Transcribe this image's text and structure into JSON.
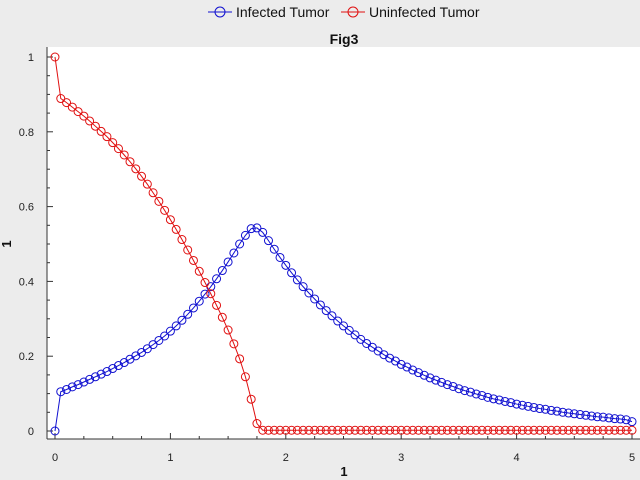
{
  "chart_data": {
    "type": "line",
    "title": "Fig3",
    "xlabel": "1",
    "ylabel": "1",
    "xlim": [
      0,
      5
    ],
    "ylim": [
      0,
      1
    ],
    "x_ticks": [
      "0",
      "1",
      "2",
      "3",
      "4",
      "5"
    ],
    "y_ticks": [
      "0",
      "0.2",
      "0.4",
      "0.6",
      "0.8",
      "1"
    ],
    "grid": false,
    "legend_position": "top",
    "x": [
      0,
      0.05,
      0.1,
      0.15,
      0.2,
      0.25,
      0.3,
      0.35,
      0.4,
      0.45,
      0.5,
      0.55,
      0.6,
      0.65,
      0.7,
      0.75,
      0.8,
      0.85,
      0.9,
      0.95,
      1.0,
      1.05,
      1.1,
      1.15,
      1.2,
      1.25,
      1.3,
      1.35,
      1.4,
      1.45,
      1.5,
      1.55,
      1.6,
      1.65,
      1.7,
      1.75,
      1.8,
      1.85,
      1.9,
      1.95,
      2.0,
      2.05,
      2.1,
      2.15,
      2.2,
      2.25,
      2.3,
      2.35,
      2.4,
      2.45,
      2.5,
      2.55,
      2.6,
      2.65,
      2.7,
      2.75,
      2.8,
      2.85,
      2.9,
      2.95,
      3.0,
      3.05,
      3.1,
      3.15,
      3.2,
      3.25,
      3.3,
      3.35,
      3.4,
      3.45,
      3.5,
      3.55,
      3.6,
      3.65,
      3.7,
      3.75,
      3.8,
      3.85,
      3.9,
      3.95,
      4.0,
      4.05,
      4.1,
      4.15,
      4.2,
      4.25,
      4.3,
      4.35,
      4.4,
      4.45,
      4.5,
      4.55,
      4.6,
      4.65,
      4.7,
      4.75,
      4.8,
      4.85,
      4.9,
      4.95,
      5.0
    ],
    "series": [
      {
        "name": "Infected Tumor",
        "color": "#1010d0",
        "marker": "open-circle",
        "values": [
          0,
          0.105,
          0.111,
          0.118,
          0.124,
          0.131,
          0.138,
          0.145,
          0.152,
          0.159,
          0.167,
          0.175,
          0.183,
          0.192,
          0.201,
          0.21,
          0.22,
          0.231,
          0.242,
          0.254,
          0.267,
          0.281,
          0.296,
          0.312,
          0.329,
          0.347,
          0.366,
          0.386,
          0.407,
          0.429,
          0.452,
          0.476,
          0.5,
          0.523,
          0.541,
          0.543,
          0.531,
          0.509,
          0.486,
          0.464,
          0.443,
          0.423,
          0.404,
          0.386,
          0.369,
          0.353,
          0.337,
          0.322,
          0.308,
          0.294,
          0.281,
          0.269,
          0.257,
          0.245,
          0.234,
          0.224,
          0.214,
          0.204,
          0.195,
          0.187,
          0.178,
          0.171,
          0.163,
          0.156,
          0.149,
          0.142,
          0.136,
          0.13,
          0.124,
          0.119,
          0.113,
          0.108,
          0.104,
          0.099,
          0.095,
          0.09,
          0.086,
          0.083,
          0.079,
          0.076,
          0.072,
          0.069,
          0.066,
          0.063,
          0.06,
          0.058,
          0.055,
          0.053,
          0.05,
          0.048,
          0.046,
          0.044,
          0.042,
          0.04,
          0.038,
          0.037,
          0.035,
          0.033,
          0.032,
          0.03,
          0.025
        ]
      },
      {
        "name": "Uninfected Tumor",
        "color": "#e01010",
        "marker": "open-circle",
        "values": [
          1.0,
          0.889,
          0.878,
          0.866,
          0.854,
          0.842,
          0.829,
          0.815,
          0.801,
          0.787,
          0.771,
          0.755,
          0.738,
          0.72,
          0.701,
          0.681,
          0.66,
          0.637,
          0.614,
          0.59,
          0.565,
          0.539,
          0.512,
          0.484,
          0.456,
          0.427,
          0.397,
          0.367,
          0.336,
          0.304,
          0.27,
          0.233,
          0.193,
          0.145,
          0.085,
          0.02,
          0.002,
          0.002,
          0.002,
          0.002,
          0.002,
          0.002,
          0.002,
          0.002,
          0.002,
          0.002,
          0.002,
          0.002,
          0.002,
          0.002,
          0.002,
          0.002,
          0.002,
          0.002,
          0.002,
          0.002,
          0.002,
          0.002,
          0.002,
          0.002,
          0.002,
          0.002,
          0.002,
          0.002,
          0.002,
          0.002,
          0.002,
          0.002,
          0.002,
          0.002,
          0.002,
          0.002,
          0.002,
          0.002,
          0.002,
          0.002,
          0.002,
          0.002,
          0.002,
          0.002,
          0.002,
          0.002,
          0.002,
          0.002,
          0.002,
          0.002,
          0.002,
          0.002,
          0.002,
          0.002,
          0.002,
          0.002,
          0.002,
          0.002,
          0.002,
          0.002,
          0.002,
          0.002,
          0.002,
          0.002,
          0.002
        ]
      }
    ]
  }
}
